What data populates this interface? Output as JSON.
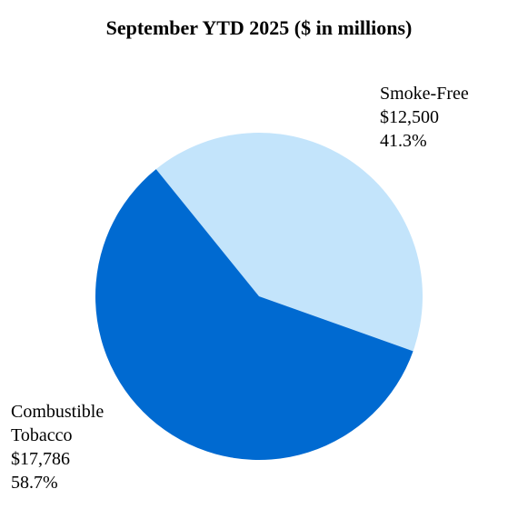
{
  "chart_data": {
    "type": "pie",
    "title": "September YTD 2025 ($ in millions)",
    "slices": [
      {
        "label_lines": [
          "Smoke-Free"
        ],
        "value": 12500,
        "value_label": "$12,500",
        "percent": 41.3,
        "percent_label": "41.3%",
        "color": "#c3e4fb"
      },
      {
        "label_lines": [
          "Combustible",
          "Tobacco"
        ],
        "value": 17786,
        "value_label": "$17,786",
        "percent": 58.7,
        "percent_label": "58.7%",
        "color": "#006ad1"
      }
    ]
  }
}
